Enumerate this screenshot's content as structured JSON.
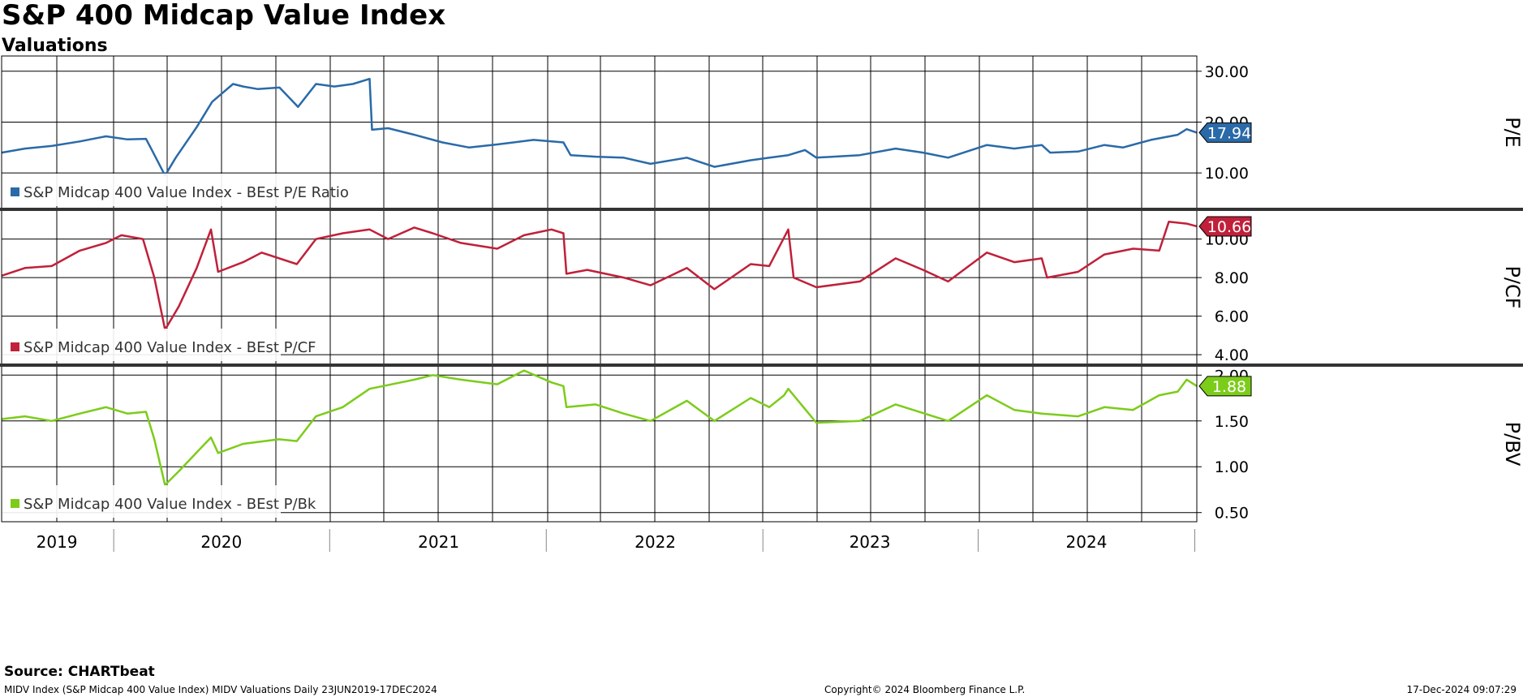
{
  "header": {
    "title": "S&P 400 Midcap Value Index",
    "subtitle": "Valuations"
  },
  "footer": {
    "source": "Source: CHARTbeat",
    "description": "MIDV Index (S&P Midcap 400 Value Index) MIDV Valuations  Daily 23JUN2019-17DEC2024",
    "copyright": "Copyright© 2024 Bloomberg Finance L.P.",
    "timestamp": "17-Dec-2024 09:07:29"
  },
  "chart_data": [
    {
      "type": "line",
      "ylabel": "P/E",
      "ylim": [
        3,
        33
      ],
      "yticks": [
        "10.00",
        "20.00",
        "30.00"
      ],
      "yticks_values": [
        10,
        20,
        30
      ],
      "x_categories": [
        "2019",
        "2020",
        "2021",
        "2022",
        "2023",
        "2024"
      ],
      "x_range": [
        "2019-06-23",
        "2024-12-17"
      ],
      "series": [
        {
          "name": "S&P Midcap 400 Value Index - BEst P/E Ratio",
          "color": "#2a6aa8",
          "last_value": "17.94",
          "points": [
            [
              "2019-06-23",
              14.0
            ],
            [
              "2019-08-01",
              14.8
            ],
            [
              "2019-09-15",
              15.3
            ],
            [
              "2019-11-01",
              16.2
            ],
            [
              "2019-12-15",
              17.2
            ],
            [
              "2020-01-20",
              16.6
            ],
            [
              "2020-02-20",
              16.7
            ],
            [
              "2020-03-01",
              14.5
            ],
            [
              "2020-03-23",
              9.5
            ],
            [
              "2020-04-10",
              13.0
            ],
            [
              "2020-05-15",
              19.0
            ],
            [
              "2020-06-10",
              24.0
            ],
            [
              "2020-07-15",
              27.5
            ],
            [
              "2020-08-01",
              27.0
            ],
            [
              "2020-08-25",
              26.5
            ],
            [
              "2020-10-01",
              26.8
            ],
            [
              "2020-11-01",
              23.0
            ],
            [
              "2020-12-01",
              27.5
            ],
            [
              "2021-01-01",
              27.0
            ],
            [
              "2021-02-01",
              27.5
            ],
            [
              "2021-03-01",
              28.5
            ],
            [
              "2021-03-05",
              18.5
            ],
            [
              "2021-04-01",
              18.8
            ],
            [
              "2021-05-15",
              17.5
            ],
            [
              "2021-07-01",
              16.0
            ],
            [
              "2021-08-15",
              15.0
            ],
            [
              "2021-10-01",
              15.6
            ],
            [
              "2021-12-01",
              16.5
            ],
            [
              "2022-01-20",
              16.0
            ],
            [
              "2022-02-01",
              13.5
            ],
            [
              "2022-03-15",
              13.2
            ],
            [
              "2022-05-01",
              13.0
            ],
            [
              "2022-06-15",
              11.8
            ],
            [
              "2022-08-15",
              13.0
            ],
            [
              "2022-09-30",
              11.2
            ],
            [
              "2022-11-30",
              12.5
            ],
            [
              "2023-01-01",
              13.0
            ],
            [
              "2023-02-01",
              13.5
            ],
            [
              "2023-03-01",
              14.5
            ],
            [
              "2023-03-20",
              13.0
            ],
            [
              "2023-06-01",
              13.5
            ],
            [
              "2023-07-31",
              14.8
            ],
            [
              "2023-09-15",
              14.0
            ],
            [
              "2023-10-27",
              13.0
            ],
            [
              "2023-12-31",
              15.5
            ],
            [
              "2024-02-15",
              14.8
            ],
            [
              "2024-04-01",
              15.5
            ],
            [
              "2024-04-15",
              14.0
            ],
            [
              "2024-06-01",
              14.2
            ],
            [
              "2024-07-15",
              15.5
            ],
            [
              "2024-08-15",
              15.0
            ],
            [
              "2024-10-01",
              16.5
            ],
            [
              "2024-11-15",
              17.5
            ],
            [
              "2024-11-30",
              18.6
            ],
            [
              "2024-12-17",
              17.94
            ]
          ]
        }
      ]
    },
    {
      "type": "line",
      "ylabel": "P/CF",
      "ylim": [
        3.5,
        11.5
      ],
      "yticks": [
        "4.00",
        "6.00",
        "8.00",
        "10.00"
      ],
      "yticks_values": [
        4,
        6,
        8,
        10
      ],
      "series": [
        {
          "name": "S&P Midcap 400 Value Index - BEst P/CF",
          "color": "#c0203a",
          "last_value": "10.66",
          "points": [
            [
              "2019-06-23",
              8.1
            ],
            [
              "2019-08-01",
              8.5
            ],
            [
              "2019-09-15",
              8.6
            ],
            [
              "2019-11-01",
              9.4
            ],
            [
              "2019-12-15",
              9.8
            ],
            [
              "2020-01-10",
              10.2
            ],
            [
              "2020-02-15",
              10.0
            ],
            [
              "2020-03-05",
              8.0
            ],
            [
              "2020-03-23",
              5.3
            ],
            [
              "2020-04-15",
              6.5
            ],
            [
              "2020-05-15",
              8.5
            ],
            [
              "2020-06-08",
              10.5
            ],
            [
              "2020-06-20",
              8.3
            ],
            [
              "2020-08-01",
              8.8
            ],
            [
              "2020-09-01",
              9.3
            ],
            [
              "2020-10-30",
              8.7
            ],
            [
              "2020-12-01",
              10.0
            ],
            [
              "2021-01-15",
              10.3
            ],
            [
              "2021-03-01",
              10.5
            ],
            [
              "2021-04-01",
              10.0
            ],
            [
              "2021-05-15",
              10.6
            ],
            [
              "2021-06-15",
              10.3
            ],
            [
              "2021-08-01",
              9.8
            ],
            [
              "2021-10-01",
              9.5
            ],
            [
              "2021-11-15",
              10.2
            ],
            [
              "2021-12-31",
              10.5
            ],
            [
              "2022-01-20",
              10.3
            ],
            [
              "2022-01-25",
              8.2
            ],
            [
              "2022-03-01",
              8.4
            ],
            [
              "2022-05-01",
              8.0
            ],
            [
              "2022-06-15",
              7.6
            ],
            [
              "2022-08-15",
              8.5
            ],
            [
              "2022-09-30",
              7.4
            ],
            [
              "2022-11-30",
              8.7
            ],
            [
              "2022-12-31",
              8.6
            ],
            [
              "2023-02-01",
              10.5
            ],
            [
              "2023-02-10",
              8.0
            ],
            [
              "2023-03-20",
              7.5
            ],
            [
              "2023-06-01",
              7.8
            ],
            [
              "2023-07-31",
              9.0
            ],
            [
              "2023-09-15",
              8.4
            ],
            [
              "2023-10-27",
              7.8
            ],
            [
              "2023-12-31",
              9.3
            ],
            [
              "2024-02-15",
              8.8
            ],
            [
              "2024-04-01",
              9.0
            ],
            [
              "2024-04-10",
              8.0
            ],
            [
              "2024-06-01",
              8.3
            ],
            [
              "2024-07-15",
              9.2
            ],
            [
              "2024-09-01",
              9.5
            ],
            [
              "2024-10-15",
              9.4
            ],
            [
              "2024-10-31",
              10.9
            ],
            [
              "2024-11-30",
              10.8
            ],
            [
              "2024-12-17",
              10.66
            ]
          ]
        }
      ]
    },
    {
      "type": "line",
      "ylabel": "P/BV",
      "ylim": [
        0.4,
        2.1
      ],
      "yticks": [
        "0.50",
        "1.00",
        "1.50",
        "2.00"
      ],
      "yticks_values": [
        0.5,
        1.0,
        1.5,
        2.0
      ],
      "series": [
        {
          "name": "S&P Midcap 400 Value Index - BEst P/Bk",
          "color": "#7ccc1a",
          "last_value": "1.88",
          "points": [
            [
              "2019-06-23",
              1.52
            ],
            [
              "2019-08-01",
              1.55
            ],
            [
              "2019-09-15",
              1.5
            ],
            [
              "2019-11-01",
              1.58
            ],
            [
              "2019-12-15",
              1.65
            ],
            [
              "2020-01-20",
              1.58
            ],
            [
              "2020-02-20",
              1.6
            ],
            [
              "2020-03-05",
              1.3
            ],
            [
              "2020-03-23",
              0.8
            ],
            [
              "2020-04-15",
              0.95
            ],
            [
              "2020-06-08",
              1.32
            ],
            [
              "2020-06-20",
              1.15
            ],
            [
              "2020-08-01",
              1.25
            ],
            [
              "2020-09-30",
              1.3
            ],
            [
              "2020-10-30",
              1.28
            ],
            [
              "2020-12-01",
              1.55
            ],
            [
              "2021-01-15",
              1.65
            ],
            [
              "2021-03-01",
              1.85
            ],
            [
              "2021-05-15",
              1.95
            ],
            [
              "2021-06-15",
              2.0
            ],
            [
              "2021-08-01",
              1.95
            ],
            [
              "2021-10-01",
              1.9
            ],
            [
              "2021-11-15",
              2.05
            ],
            [
              "2021-12-31",
              1.92
            ],
            [
              "2022-01-20",
              1.88
            ],
            [
              "2022-01-25",
              1.65
            ],
            [
              "2022-03-15",
              1.68
            ],
            [
              "2022-05-01",
              1.58
            ],
            [
              "2022-06-15",
              1.5
            ],
            [
              "2022-08-15",
              1.72
            ],
            [
              "2022-09-30",
              1.5
            ],
            [
              "2022-11-30",
              1.75
            ],
            [
              "2022-12-31",
              1.65
            ],
            [
              "2023-01-25",
              1.78
            ],
            [
              "2023-02-01",
              1.85
            ],
            [
              "2023-03-20",
              1.48
            ],
            [
              "2023-06-01",
              1.5
            ],
            [
              "2023-07-31",
              1.68
            ],
            [
              "2023-10-27",
              1.5
            ],
            [
              "2023-12-31",
              1.78
            ],
            [
              "2024-02-15",
              1.62
            ],
            [
              "2024-04-01",
              1.58
            ],
            [
              "2024-06-01",
              1.55
            ],
            [
              "2024-07-15",
              1.65
            ],
            [
              "2024-09-01",
              1.62
            ],
            [
              "2024-10-15",
              1.78
            ],
            [
              "2024-11-15",
              1.82
            ],
            [
              "2024-11-30",
              1.95
            ],
            [
              "2024-12-17",
              1.88
            ]
          ]
        }
      ]
    }
  ]
}
